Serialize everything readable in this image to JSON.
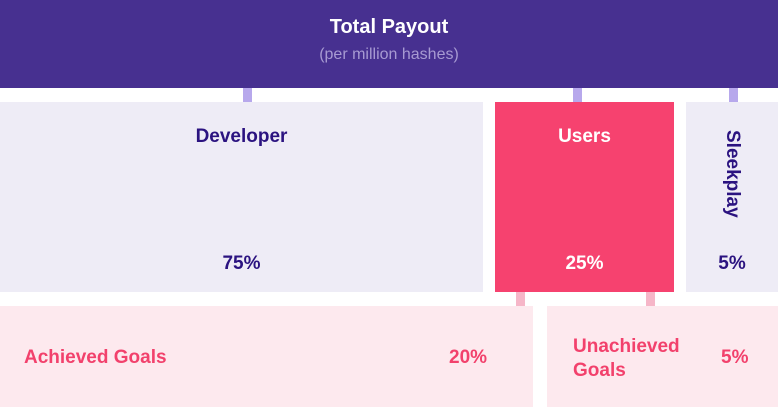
{
  "header": {
    "title": "Total Payout",
    "subtitle": "(per million hashes)"
  },
  "split": [
    {
      "label": "Developer",
      "percent": "75%"
    },
    {
      "label": "Users",
      "percent": "25%"
    },
    {
      "label": "Sleekplay",
      "percent": "5%"
    }
  ],
  "users_split": [
    {
      "label": "Achieved Goals",
      "percent": "20%"
    },
    {
      "label": "Unachieved Goals",
      "percent": "5%"
    }
  ],
  "colors": {
    "header_bg": "#473090",
    "lavender_box": "#eeecf6",
    "users_box": "#f6426f",
    "light_pink_box": "#fde9ee",
    "dark_text": "#2b1380",
    "pink_text": "#f2416c"
  }
}
